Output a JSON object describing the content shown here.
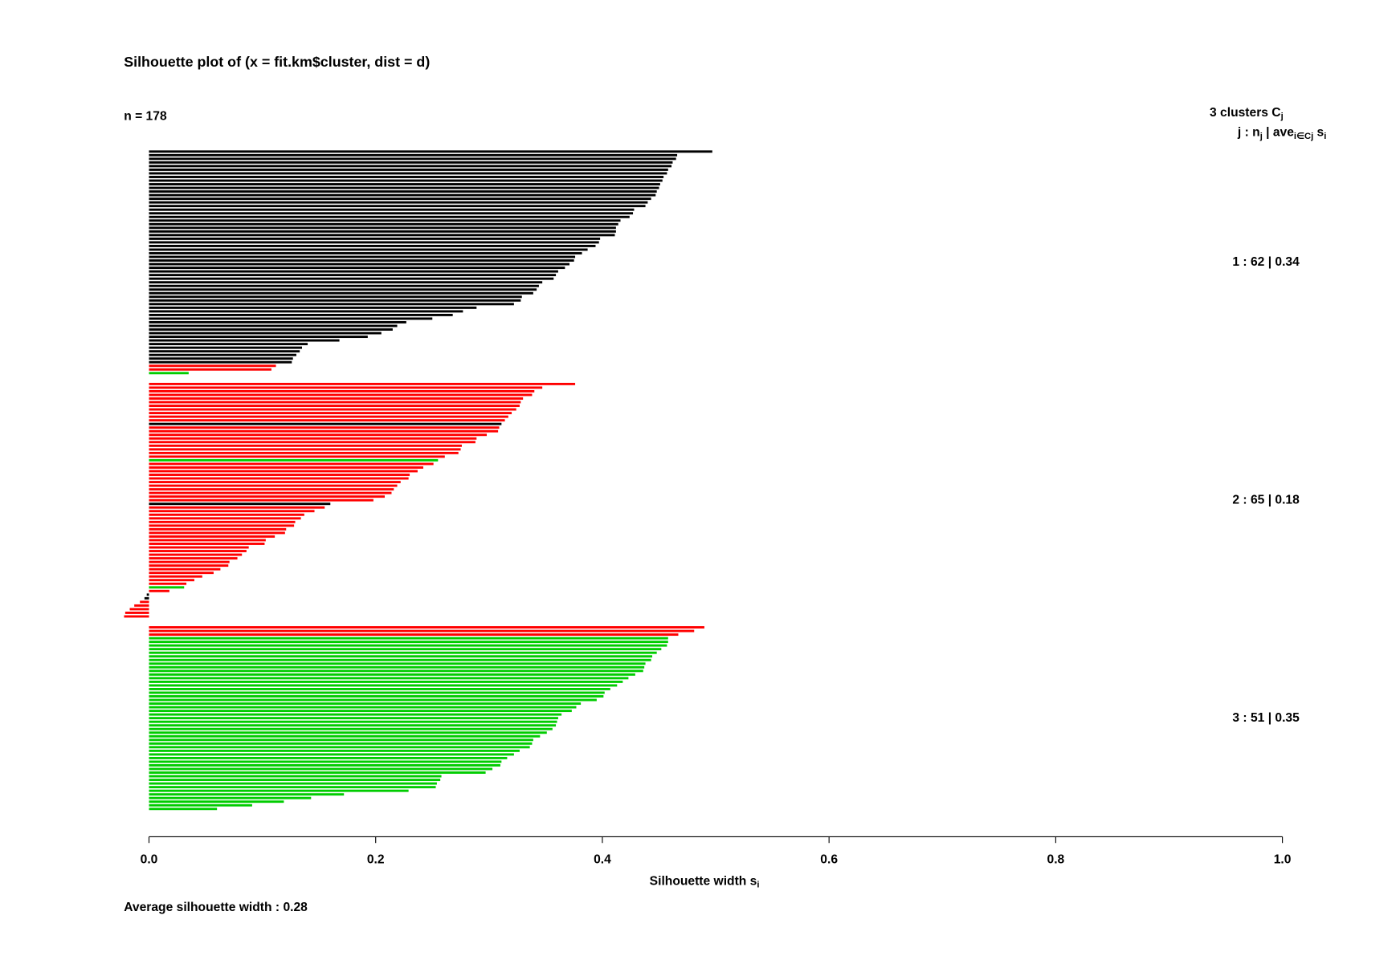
{
  "chart_data": {
    "type": "bar",
    "orientation": "horizontal",
    "title": "Silhouette plot of (x = fit.km$cluster, dist = d)",
    "subtitle": "n = 178",
    "legend_title": [
      "3  clusters  C",
      "j"
    ],
    "legend_subtitle": [
      "j :  n",
      "j",
      " | ave",
      "i∈Cj",
      "  s",
      "i"
    ],
    "xlabel": [
      "Silhouette width s",
      "i"
    ],
    "footer": "Average silhouette width :  0.28",
    "xlim": [
      0,
      1
    ],
    "xticks": [
      {
        "value": 0,
        "label": "0.0"
      },
      0.2,
      0.4,
      0.6,
      0.8,
      {
        "value": 1,
        "label": "1.0"
      }
    ],
    "groups": [
      {
        "label": "1 :  62  |  0.34",
        "values": [
          0.497,
          0.466,
          0.465,
          0.462,
          0.461,
          0.458,
          0.457,
          0.454,
          0.453,
          0.451,
          0.45,
          0.448,
          0.447,
          0.443,
          0.44,
          0.438,
          0.428,
          0.427,
          0.424,
          0.416,
          0.414,
          0.412,
          0.412,
          0.411,
          0.398,
          0.397,
          0.394,
          0.387,
          0.382,
          0.376,
          0.375,
          0.371,
          0.367,
          0.361,
          0.359,
          0.357,
          0.347,
          0.344,
          0.342,
          0.339,
          0.329,
          0.328,
          0.322,
          0.289,
          0.277,
          0.268,
          0.25,
          0.227,
          0.219,
          0.215,
          0.205,
          0.193,
          0.168,
          0.14,
          0.135,
          0.133,
          0.13,
          0.127,
          0.126,
          0.112,
          0.108,
          0.035
        ],
        "colors": [
          "#000",
          "#000",
          "#000",
          "#000",
          "#000",
          "#000",
          "#000",
          "#000",
          "#000",
          "#000",
          "#000",
          "#000",
          "#000",
          "#000",
          "#000",
          "#000",
          "#000",
          "#000",
          "#000",
          "#000",
          "#000",
          "#000",
          "#000",
          "#000",
          "#000",
          "#000",
          "#000",
          "#000",
          "#000",
          "#000",
          "#000",
          "#000",
          "#000",
          "#000",
          "#000",
          "#000",
          "#000",
          "#000",
          "#000",
          "#000",
          "#000",
          "#000",
          "#000",
          "#000",
          "#000",
          "#000",
          "#000",
          "#000",
          "#000",
          "#000",
          "#000",
          "#000",
          "#000",
          "#000",
          "#000",
          "#000",
          "#000",
          "#000",
          "#000",
          "#f00",
          "#f00",
          "#0c0"
        ]
      },
      {
        "label": "2 :  65  |  0.18",
        "values": [
          0.376,
          0.347,
          0.34,
          0.338,
          0.33,
          0.328,
          0.327,
          0.324,
          0.32,
          0.317,
          0.314,
          0.311,
          0.309,
          0.308,
          0.298,
          0.289,
          0.288,
          0.276,
          0.275,
          0.273,
          0.261,
          0.255,
          0.251,
          0.242,
          0.237,
          0.23,
          0.229,
          0.222,
          0.219,
          0.216,
          0.214,
          0.208,
          0.198,
          0.16,
          0.155,
          0.146,
          0.137,
          0.134,
          0.129,
          0.128,
          0.121,
          0.12,
          0.111,
          0.103,
          0.102,
          0.088,
          0.086,
          0.082,
          0.078,
          0.071,
          0.07,
          0.063,
          0.057,
          0.047,
          0.04,
          0.033,
          0.031,
          0.018,
          -0.002,
          -0.004,
          -0.008,
          -0.013,
          -0.017,
          -0.021,
          -0.022
        ],
        "colors": [
          "#f00",
          "#f00",
          "#f00",
          "#f00",
          "#f00",
          "#f00",
          "#f00",
          "#f00",
          "#f00",
          "#f00",
          "#f00",
          "#000",
          "#f00",
          "#f00",
          "#f00",
          "#f00",
          "#f00",
          "#f00",
          "#f00",
          "#f00",
          "#f00",
          "#0c0",
          "#f00",
          "#f00",
          "#f00",
          "#f00",
          "#f00",
          "#f00",
          "#f00",
          "#f00",
          "#f00",
          "#f00",
          "#f00",
          "#000",
          "#f00",
          "#f00",
          "#f00",
          "#f00",
          "#f00",
          "#f00",
          "#f00",
          "#f00",
          "#f00",
          "#f00",
          "#f00",
          "#f00",
          "#f00",
          "#f00",
          "#f00",
          "#f00",
          "#f00",
          "#f00",
          "#f00",
          "#f00",
          "#f00",
          "#f00",
          "#0c0",
          "#f00",
          "#000",
          "#000",
          "#f00",
          "#f00",
          "#f00",
          "#f00",
          "#f00"
        ]
      },
      {
        "label": "3 :  51  |  0.35",
        "values": [
          0.49,
          0.481,
          0.467,
          0.458,
          0.458,
          0.457,
          0.452,
          0.448,
          0.444,
          0.443,
          0.438,
          0.437,
          0.436,
          0.429,
          0.423,
          0.418,
          0.413,
          0.407,
          0.402,
          0.401,
          0.395,
          0.381,
          0.377,
          0.373,
          0.364,
          0.361,
          0.36,
          0.359,
          0.356,
          0.351,
          0.345,
          0.339,
          0.338,
          0.336,
          0.327,
          0.322,
          0.316,
          0.311,
          0.31,
          0.303,
          0.297,
          0.258,
          0.257,
          0.254,
          0.253,
          0.229,
          0.172,
          0.143,
          0.119,
          0.091,
          0.06
        ],
        "colors": [
          "#f00",
          "#f00",
          "#f00",
          "#0c0",
          "#0c0",
          "#0c0",
          "#0c0",
          "#0c0",
          "#0c0",
          "#0c0",
          "#0c0",
          "#0c0",
          "#0c0",
          "#0c0",
          "#0c0",
          "#0c0",
          "#0c0",
          "#0c0",
          "#0c0",
          "#0c0",
          "#0c0",
          "#0c0",
          "#0c0",
          "#0c0",
          "#0c0",
          "#0c0",
          "#0c0",
          "#0c0",
          "#0c0",
          "#0c0",
          "#0c0",
          "#0c0",
          "#0c0",
          "#0c0",
          "#0c0",
          "#0c0",
          "#0c0",
          "#0c0",
          "#0c0",
          "#0c0",
          "#0c0",
          "#0c0",
          "#0c0",
          "#0c0",
          "#0c0",
          "#0c0",
          "#0c0",
          "#0c0",
          "#0c0",
          "#0c0",
          "#0c0"
        ]
      }
    ]
  }
}
